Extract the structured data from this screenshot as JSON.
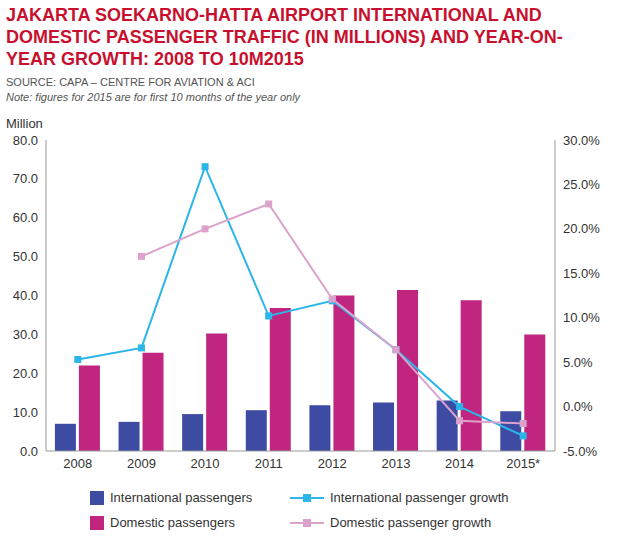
{
  "chart_data": {
    "type": "bar",
    "title": "JAKARTA SOEKARNO-HATTA AIRPORT INTERNATIONAL AND DOMESTIC PASSENGER TRAFFIC (IN MILLIONS) AND YEAR-ON-YEAR GROWTH: 2008 TO 10M2015",
    "subtitle": "SOURCE: CAPA – CENTRE FOR AVIATION & ACI",
    "note": "Note: figures for 2015 are for first 10 months of the year only",
    "ylabel": "Million",
    "categories": [
      "2008",
      "2009",
      "2010",
      "2011",
      "2012",
      "2013",
      "2014",
      "2015*"
    ],
    "series": [
      {
        "name": "International passengers",
        "type": "bar",
        "color": "#3d4ba3",
        "values": [
          7.0,
          7.5,
          9.5,
          10.5,
          11.8,
          12.5,
          13.0,
          10.2
        ]
      },
      {
        "name": "International passenger growth",
        "type": "line",
        "axis": "y2",
        "marker": "square",
        "color": "#2bb5e8",
        "values": [
          5.3,
          6.6,
          27.0,
          10.2,
          11.9,
          6.4,
          0.0,
          -3.3
        ]
      },
      {
        "name": "Domestic passengers",
        "type": "bar",
        "color": "#c0267f",
        "values": [
          22.0,
          25.3,
          30.2,
          36.8,
          40.0,
          41.4,
          38.8,
          30.0
        ]
      },
      {
        "name": "Domestic passenger growth",
        "type": "line",
        "axis": "y2",
        "marker": "square",
        "color": "#dba3cb",
        "values": [
          null,
          16.9,
          20.0,
          22.8,
          12.1,
          6.4,
          -1.6,
          -1.9
        ]
      }
    ],
    "ylim": [
      0,
      80
    ],
    "yticks": [
      {
        "value": 0,
        "label": "0.0"
      },
      {
        "value": 10,
        "label": "10.0"
      },
      {
        "value": 20,
        "label": "20.0"
      },
      {
        "value": 30,
        "label": "30.0"
      },
      {
        "value": 40,
        "label": "40.0"
      },
      {
        "value": 50,
        "label": "50.0"
      },
      {
        "value": 60,
        "label": "60.0"
      },
      {
        "value": 70,
        "label": "70.0"
      },
      {
        "value": 80,
        "label": "80.0"
      }
    ],
    "y2lim": [
      -5,
      30
    ],
    "y2ticks": [
      {
        "value": -5,
        "label": "-5.0%"
      },
      {
        "value": 0,
        "label": "0.0%"
      },
      {
        "value": 5,
        "label": "5.0%"
      },
      {
        "value": 10,
        "label": "10.0%"
      },
      {
        "value": 15,
        "label": "15.0%"
      },
      {
        "value": 20,
        "label": "20.0%"
      },
      {
        "value": 25,
        "label": "25.0%"
      },
      {
        "value": 30,
        "label": "30.0%"
      }
    ],
    "grid": false,
    "legend": "bottom"
  }
}
